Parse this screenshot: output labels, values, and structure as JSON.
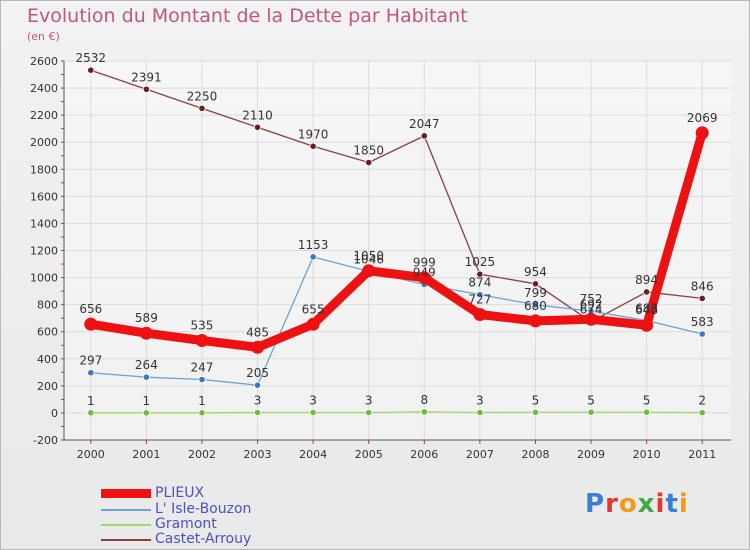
{
  "title": "Evolution du Montant de la Dette par Habitant",
  "subtitle": "(en €)",
  "brand": {
    "text": "Proxiti",
    "letters": [
      "P",
      "r",
      "o",
      "x",
      "i",
      "t",
      "i"
    ],
    "colors": [
      "#3b7fd4",
      "#e2372a",
      "#f29b18",
      "#43a844",
      "#e2372a",
      "#3b7fd4",
      "#f29b18"
    ]
  },
  "chart_data": {
    "type": "line",
    "x": [
      "2000",
      "2001",
      "2002",
      "2003",
      "2004",
      "2005",
      "2006",
      "2007",
      "2008",
      "2009",
      "2010",
      "2011"
    ],
    "y_ticks": [
      -200,
      0,
      200,
      400,
      600,
      800,
      1000,
      1200,
      1400,
      1600,
      1800,
      2000,
      2200,
      2400,
      2600
    ],
    "ylim": [
      -200,
      2600
    ],
    "grid": true,
    "legend_position": "bottom-left",
    "series": [
      {
        "name": "PLIEUX",
        "color": "#ee1111",
        "marker": "#ee1111",
        "values": [
          656,
          589,
          535,
          485,
          655,
          1050,
          999,
          727,
          680,
          692,
          648,
          2069
        ],
        "labels": [
          "656",
          "589",
          "535",
          "485",
          "655",
          "1050",
          "999",
          "727",
          "680",
          "692",
          "648",
          "2069"
        ]
      },
      {
        "name": "L' Isle-Bouzon",
        "color": "#6aa3d5",
        "marker": "#3a78c2",
        "values": [
          297,
          264,
          247,
          205,
          1153,
          1046,
          949,
          874,
          799,
          752,
          683,
          583
        ],
        "labels": [
          "297",
          "264",
          "247",
          "205",
          "1153",
          "1046",
          "949",
          "874",
          "799",
          "752",
          "683",
          "583"
        ]
      },
      {
        "name": "Gramont",
        "color": "#9ed86a",
        "marker": "#6cbf3c",
        "values": [
          1,
          1,
          1,
          3,
          3,
          3,
          8,
          3,
          5,
          5,
          5,
          2
        ],
        "labels": [
          "1",
          "1",
          "1",
          "3",
          "3",
          "3",
          "8",
          "3",
          "5",
          "5",
          "5",
          "2"
        ]
      },
      {
        "name": "Castet-Arrouy",
        "color": "#8c4040",
        "marker": "#6a1e1e",
        "values": [
          2532,
          2391,
          2250,
          2110,
          1970,
          1850,
          2047,
          1025,
          954,
          674,
          894,
          846
        ],
        "labels": [
          "2532",
          "2391",
          "2250",
          "2110",
          "1970",
          "1850",
          "2047",
          "1025",
          "954",
          "674",
          "894",
          "846"
        ]
      }
    ]
  }
}
